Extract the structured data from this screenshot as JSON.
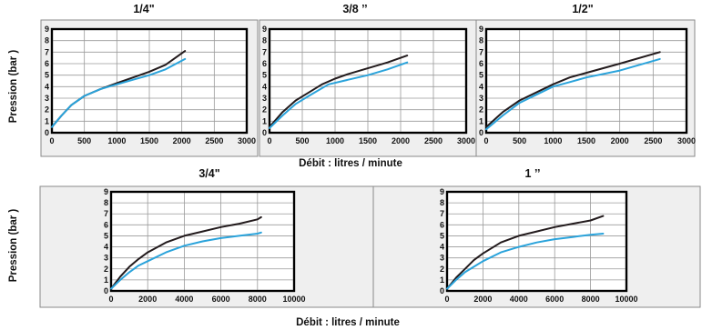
{
  "colors": {
    "dark_series": "#221a1c",
    "blue_series": "#2aa3db",
    "panel_background": "#efefef"
  },
  "top_row": {
    "ylabel": "Pression  (bar )",
    "xlabel": "Débit : litres / minute"
  },
  "bottom_row": {
    "ylabel": "Pression  (bar )",
    "xlabel": "Débit : litres / minute"
  },
  "chart_data": [
    {
      "type": "line",
      "title": "1/4\"",
      "xlim": [
        0,
        3000
      ],
      "ylim": [
        0,
        9
      ],
      "xticks": [
        0,
        500,
        1000,
        1500,
        2000,
        2500,
        3000
      ],
      "yticks": [
        0,
        1,
        2,
        3,
        4,
        5,
        6,
        7,
        8,
        9
      ],
      "grid": true,
      "series": [
        {
          "color": "#221a1c",
          "points": [
            [
              0,
              0.5
            ],
            [
              150,
              1.5
            ],
            [
              300,
              2.4
            ],
            [
              500,
              3.2
            ],
            [
              750,
              3.8
            ],
            [
              1000,
              4.3
            ],
            [
              1250,
              4.8
            ],
            [
              1500,
              5.3
            ],
            [
              1750,
              5.9
            ],
            [
              2050,
              7.1
            ]
          ]
        },
        {
          "color": "#2aa3db",
          "points": [
            [
              0,
              0.5
            ],
            [
              150,
              1.5
            ],
            [
              300,
              2.4
            ],
            [
              500,
              3.2
            ],
            [
              750,
              3.8
            ],
            [
              1000,
              4.2
            ],
            [
              1250,
              4.6
            ],
            [
              1500,
              5.0
            ],
            [
              1750,
              5.5
            ],
            [
              2050,
              6.4
            ]
          ]
        }
      ]
    },
    {
      "type": "line",
      "title": "3/8 ’’",
      "xlim": [
        0,
        3000
      ],
      "ylim": [
        0,
        9
      ],
      "xticks": [
        0,
        500,
        1000,
        1500,
        2000,
        2500,
        3000
      ],
      "yticks": [
        0,
        1,
        2,
        3,
        4,
        5,
        6,
        7,
        8,
        9
      ],
      "grid": true,
      "series": [
        {
          "color": "#221a1c",
          "points": [
            [
              0,
              0.5
            ],
            [
              200,
              1.8
            ],
            [
              400,
              2.8
            ],
            [
              600,
              3.5
            ],
            [
              800,
              4.2
            ],
            [
              1000,
              4.7
            ],
            [
              1200,
              5.1
            ],
            [
              1500,
              5.6
            ],
            [
              1800,
              6.1
            ],
            [
              2100,
              6.7
            ]
          ]
        },
        {
          "color": "#2aa3db",
          "points": [
            [
              0,
              0.4
            ],
            [
              200,
              1.5
            ],
            [
              400,
              2.5
            ],
            [
              600,
              3.2
            ],
            [
              900,
              4.2
            ],
            [
              1200,
              4.6
            ],
            [
              1500,
              5.0
            ],
            [
              1800,
              5.5
            ],
            [
              2100,
              6.1
            ]
          ]
        }
      ]
    },
    {
      "type": "line",
      "title": "1/2\"",
      "xlim": [
        0,
        3000
      ],
      "ylim": [
        0,
        9
      ],
      "xticks": [
        0,
        500,
        1000,
        1500,
        2000,
        2500,
        3000
      ],
      "yticks": [
        0,
        1,
        2,
        3,
        4,
        5,
        6,
        7,
        8,
        9
      ],
      "grid": true,
      "series": [
        {
          "color": "#221a1c",
          "points": [
            [
              0,
              0.5
            ],
            [
              250,
              1.8
            ],
            [
              500,
              2.8
            ],
            [
              750,
              3.5
            ],
            [
              1000,
              4.2
            ],
            [
              1250,
              4.8
            ],
            [
              1500,
              5.2
            ],
            [
              2000,
              6.0
            ],
            [
              2600,
              7.0
            ]
          ]
        },
        {
          "color": "#2aa3db",
          "points": [
            [
              0,
              0.3
            ],
            [
              250,
              1.5
            ],
            [
              500,
              2.6
            ],
            [
              750,
              3.3
            ],
            [
              1000,
              4.0
            ],
            [
              1250,
              4.4
            ],
            [
              1500,
              4.8
            ],
            [
              2000,
              5.4
            ],
            [
              2600,
              6.4
            ]
          ]
        }
      ]
    },
    {
      "type": "line",
      "title": "3/4\"",
      "xlim": [
        0,
        10000
      ],
      "ylim": [
        0,
        9
      ],
      "xticks": [
        0,
        2000,
        4000,
        6000,
        8000,
        10000
      ],
      "yticks": [
        0,
        1,
        2,
        3,
        4,
        5,
        6,
        7,
        8,
        9
      ],
      "grid": true,
      "series": [
        {
          "color": "#221a1c",
          "points": [
            [
              0,
              0.2
            ],
            [
              500,
              1.3
            ],
            [
              1000,
              2.2
            ],
            [
              1500,
              2.9
            ],
            [
              2000,
              3.5
            ],
            [
              3000,
              4.4
            ],
            [
              4000,
              5.0
            ],
            [
              5000,
              5.4
            ],
            [
              6000,
              5.8
            ],
            [
              7000,
              6.1
            ],
            [
              8000,
              6.5
            ],
            [
              8200,
              6.7
            ]
          ]
        },
        {
          "color": "#2aa3db",
          "points": [
            [
              0,
              0.2
            ],
            [
              500,
              1.0
            ],
            [
              1000,
              1.7
            ],
            [
              1500,
              2.3
            ],
            [
              2000,
              2.7
            ],
            [
              3000,
              3.5
            ],
            [
              4000,
              4.1
            ],
            [
              5000,
              4.5
            ],
            [
              6000,
              4.8
            ],
            [
              7000,
              5.0
            ],
            [
              8000,
              5.2
            ],
            [
              8200,
              5.3
            ]
          ]
        }
      ]
    },
    {
      "type": "line",
      "title": "1 ’’",
      "xlim": [
        0,
        10000
      ],
      "ylim": [
        0,
        9
      ],
      "xticks": [
        0,
        2000,
        4000,
        6000,
        8000,
        10000
      ],
      "yticks": [
        0,
        1,
        2,
        3,
        4,
        5,
        6,
        7,
        8,
        9
      ],
      "grid": true,
      "series": [
        {
          "color": "#221a1c",
          "points": [
            [
              0,
              0.2
            ],
            [
              500,
              1.2
            ],
            [
              1000,
              2.0
            ],
            [
              1500,
              2.8
            ],
            [
              2000,
              3.4
            ],
            [
              3000,
              4.4
            ],
            [
              4000,
              5.0
            ],
            [
              5000,
              5.4
            ],
            [
              6000,
              5.8
            ],
            [
              7000,
              6.1
            ],
            [
              8000,
              6.4
            ],
            [
              8700,
              6.8
            ]
          ]
        },
        {
          "color": "#2aa3db",
          "points": [
            [
              0,
              0.2
            ],
            [
              500,
              1.0
            ],
            [
              1000,
              1.7
            ],
            [
              1500,
              2.2
            ],
            [
              2000,
              2.7
            ],
            [
              3000,
              3.5
            ],
            [
              4000,
              4.0
            ],
            [
              5000,
              4.4
            ],
            [
              6000,
              4.7
            ],
            [
              7000,
              4.9
            ],
            [
              8000,
              5.1
            ],
            [
              8700,
              5.2
            ]
          ]
        }
      ]
    }
  ]
}
